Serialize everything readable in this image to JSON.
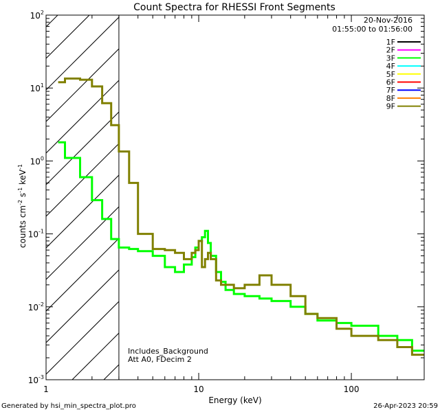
{
  "chart_data": {
    "type": "line",
    "title": "Count Spectra for RHESSI Front Segments",
    "xlabel": "Energy (keV)",
    "ylabel": "counts cm-2 s-1 keV-1",
    "ylabel_parts": {
      "base": "counts cm",
      "exp1": "-2",
      "mid": " s",
      "exp2": "-1",
      "unit": " keV",
      "exp3": "-1"
    },
    "xscale": "log",
    "yscale": "log",
    "xlim": [
      1,
      300
    ],
    "ylim": [
      0.001,
      100
    ],
    "x_ticks": [
      {
        "value": 1,
        "label": "1"
      },
      {
        "value": 10,
        "label": "10"
      },
      {
        "value": 100,
        "label": "100"
      }
    ],
    "y_ticks": [
      {
        "value": 0.001,
        "base": "10",
        "exp": "-3"
      },
      {
        "value": 0.01,
        "base": "10",
        "exp": "-2"
      },
      {
        "value": 0.1,
        "base": "10",
        "exp": "-1"
      },
      {
        "value": 1,
        "base": "10",
        "exp": "0"
      },
      {
        "value": 10,
        "base": "10",
        "exp": "1"
      },
      {
        "value": 100,
        "base": "10",
        "exp": "2"
      }
    ],
    "legend_position": "top-right",
    "legend_header": [
      "20-Nov-2016",
      "01:55:00 to 01:56:00"
    ],
    "legend": [
      {
        "label": "1F",
        "color": "#000000"
      },
      {
        "label": "2F",
        "color": "#ff00ff"
      },
      {
        "label": "3F",
        "color": "#00ff00"
      },
      {
        "label": "4F",
        "color": "#00ffff"
      },
      {
        "label": "5F",
        "color": "#ffff00"
      },
      {
        "label": "6F",
        "color": "#ff0000"
      },
      {
        "label": "7F",
        "color": "#0000ff"
      },
      {
        "label": "8F",
        "color": "#ff8000"
      },
      {
        "label": "9F",
        "color": "#808000"
      }
    ],
    "shaded_region": {
      "x_from": 1,
      "x_to": 3,
      "pattern": "diagonal hatching"
    },
    "annotations": [
      "Includes_Background",
      "Att A0, FDecim 2"
    ],
    "series": [
      {
        "name": "3F",
        "color": "#00ff00",
        "step": true,
        "x": [
          1.2,
          1.33,
          1.67,
          2.0,
          2.33,
          2.67,
          3.0,
          3.5,
          4.0,
          5.0,
          6.0,
          7.0,
          8.0,
          9.0,
          9.5,
          10.0,
          10.5,
          11.0,
          11.5,
          12.0,
          13.0,
          14.0,
          15.0,
          17.0,
          20.0,
          25.0,
          30.0,
          40.0,
          50.0,
          60.0,
          80.0,
          100.0,
          150.0,
          200.0,
          250.0,
          300.0
        ],
        "values": [
          1.8,
          1.1,
          0.6,
          0.29,
          0.16,
          0.085,
          0.065,
          0.062,
          0.058,
          0.05,
          0.035,
          0.03,
          0.038,
          0.048,
          0.065,
          0.08,
          0.09,
          0.11,
          0.075,
          0.05,
          0.03,
          0.022,
          0.017,
          0.015,
          0.014,
          0.013,
          0.012,
          0.01,
          0.008,
          0.0065,
          0.006,
          0.0055,
          0.004,
          0.0035,
          0.0025,
          0.0025
        ]
      },
      {
        "name": "9F",
        "color": "#808000",
        "step": true,
        "x": [
          1.2,
          1.33,
          1.67,
          2.0,
          2.33,
          2.67,
          3.0,
          3.5,
          4.0,
          5.0,
          6.0,
          7.0,
          8.0,
          9.0,
          9.5,
          10.0,
          10.5,
          11.0,
          11.5,
          12.0,
          13.0,
          14.0,
          15.0,
          17.0,
          20.0,
          25.0,
          30.0,
          40.0,
          50.0,
          60.0,
          80.0,
          100.0,
          150.0,
          200.0,
          250.0,
          300.0
        ],
        "values": [
          12.0,
          13.5,
          13.0,
          10.5,
          6.2,
          3.1,
          1.35,
          0.5,
          0.1,
          0.062,
          0.06,
          0.055,
          0.045,
          0.055,
          0.06,
          0.08,
          0.035,
          0.045,
          0.055,
          0.045,
          0.023,
          0.02,
          0.02,
          0.018,
          0.02,
          0.027,
          0.02,
          0.014,
          0.008,
          0.007,
          0.005,
          0.004,
          0.0035,
          0.0028,
          0.0022,
          0.0022
        ]
      }
    ]
  },
  "footer": {
    "left": "Generated by hsi_min_spectra_plot.pro",
    "right": "26-Apr-2023 20:59"
  }
}
